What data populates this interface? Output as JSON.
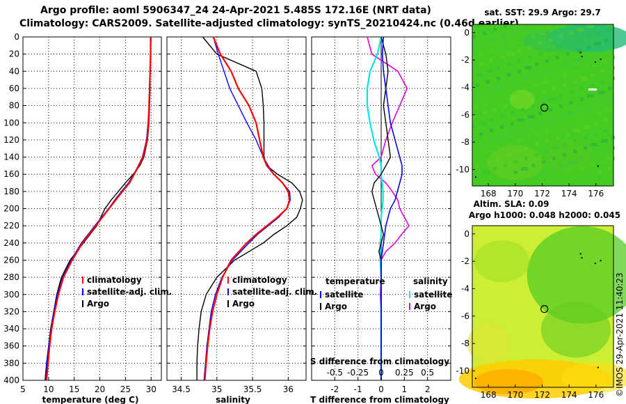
{
  "header": {
    "line1": "Argo profile: aoml 5906347_24 24-Apr-2021 5.485S 172.16E (NRT data)",
    "line2": "Climatology: CARS2009. Satellite-adjusted climatology: synTS_20210424.nc (0.46d earlier)"
  },
  "colors": {
    "climatology": "#ff0000",
    "satellite": "#0000ff",
    "argo": "#000000",
    "s_satellite": "#00e5e5",
    "s_argo": "#e000e0"
  },
  "depth_axis": {
    "ticks": [
      0,
      20,
      40,
      60,
      80,
      100,
      120,
      140,
      160,
      180,
      200,
      220,
      240,
      260,
      280,
      300,
      320,
      340,
      360,
      380,
      400
    ]
  },
  "chart_data": [
    {
      "type": "line",
      "xlabel": "temperature (deg C)",
      "xlim": [
        5,
        32
      ],
      "ylim": [
        400,
        0
      ],
      "xticks": [
        5,
        10,
        15,
        20,
        25,
        30
      ],
      "depth": [
        0,
        20,
        40,
        60,
        80,
        100,
        120,
        140,
        150,
        160,
        170,
        180,
        190,
        200,
        220,
        240,
        260,
        280,
        300,
        320,
        340,
        360,
        380,
        400
      ],
      "series": [
        {
          "name": "climatology",
          "values": [
            29.9,
            29.9,
            29.8,
            29.7,
            29.6,
            29.5,
            29.2,
            28.4,
            27.6,
            26.7,
            25.8,
            24.4,
            23.1,
            21.8,
            19.2,
            16.6,
            14.6,
            12.9,
            11.9,
            11.2,
            10.6,
            10.2,
            9.9,
            9.6
          ]
        },
        {
          "name": "satellite-adj. clim.",
          "values": [
            30.0,
            29.9,
            29.8,
            29.7,
            29.6,
            29.4,
            29.1,
            28.3,
            27.5,
            26.6,
            25.6,
            24.2,
            22.9,
            21.7,
            19.0,
            16.4,
            14.4,
            12.7,
            11.7,
            11.0,
            10.5,
            10.0,
            9.6,
            9.3
          ]
        },
        {
          "name": "Argo",
          "values": [
            29.9,
            29.9,
            29.8,
            29.8,
            29.7,
            29.6,
            29.3,
            28.6,
            27.8,
            26.5,
            25.0,
            23.6,
            22.2,
            21.0,
            19.4,
            16.8,
            14.2,
            12.5,
            11.6,
            11.0,
            10.4,
            10.0,
            9.7,
            9.4
          ]
        }
      ],
      "legend": [
        "climatology",
        "satellite-adj. clim.",
        "Argo"
      ]
    },
    {
      "type": "line",
      "xlabel": "salinity",
      "xlim": [
        34.3,
        36.25
      ],
      "ylim": [
        400,
        0
      ],
      "xticks": [
        34.5,
        35,
        35.5,
        36
      ],
      "xtick_labels": [
        "34.5",
        "35",
        "35.5",
        "36"
      ],
      "depth": [
        0,
        20,
        40,
        60,
        80,
        100,
        120,
        140,
        150,
        160,
        170,
        180,
        190,
        200,
        210,
        220,
        230,
        240,
        260,
        280,
        300,
        320,
        340,
        360,
        380,
        400
      ],
      "series": [
        {
          "name": "climatology",
          "values": [
            34.95,
            35.05,
            35.2,
            35.3,
            35.45,
            35.55,
            35.6,
            35.65,
            35.7,
            35.8,
            35.92,
            36.0,
            36.02,
            35.98,
            35.85,
            35.7,
            35.55,
            35.42,
            35.2,
            35.08,
            35.0,
            34.94,
            34.9,
            34.87,
            34.85,
            34.83
          ]
        },
        {
          "name": "satellite-adj. clim.",
          "values": [
            34.95,
            35.02,
            35.1,
            35.18,
            35.3,
            35.42,
            35.55,
            35.65,
            35.72,
            35.8,
            35.92,
            36.02,
            36.03,
            35.98,
            35.87,
            35.72,
            35.57,
            35.45,
            35.22,
            35.07,
            34.98,
            34.92,
            34.89,
            34.86,
            34.84,
            34.82
          ]
        },
        {
          "name": "Argo",
          "values": [
            34.8,
            35.0,
            35.55,
            35.63,
            35.65,
            35.66,
            35.66,
            35.66,
            35.7,
            35.85,
            36.05,
            36.16,
            36.2,
            36.17,
            36.12,
            35.98,
            35.8,
            35.65,
            35.25,
            35.0,
            34.85,
            34.78,
            34.75,
            34.73,
            34.72,
            34.72
          ]
        }
      ],
      "legend": [
        "climatology",
        "satellite-adj. clim.",
        "Argo"
      ]
    },
    {
      "type": "line",
      "xlabel": "T difference from climatology",
      "xlim": [
        -3,
        3
      ],
      "ylim": [
        400,
        0
      ],
      "xticks": [
        -2,
        -1,
        0,
        1,
        2
      ],
      "top_axis_label": "S difference from climatology",
      "top_ticks": [
        -0.5,
        -0.25,
        0,
        0.25,
        0.5
      ],
      "top_tick_labels": [
        "-0.5",
        "-0.25",
        "0",
        "0.25",
        "0.5"
      ],
      "depth": [
        0,
        20,
        40,
        60,
        80,
        100,
        120,
        140,
        150,
        160,
        170,
        180,
        190,
        200,
        210,
        220,
        230,
        240,
        250,
        260,
        280,
        300,
        320,
        340,
        360,
        380,
        400
      ],
      "series": [
        {
          "name": "T satellite",
          "values": [
            0.1,
            0.05,
            0.1,
            0.2,
            0.3,
            0.4,
            0.6,
            0.8,
            0.9,
            0.9,
            0.8,
            0.7,
            0.6,
            0.4,
            0.3,
            0.2,
            0.15,
            0.1,
            0.05,
            0.0,
            0.0,
            0.0,
            0.0,
            0.0,
            0.0,
            0.0,
            0.0
          ]
        },
        {
          "name": "T Argo",
          "values": [
            0.0,
            0.2,
            0.3,
            0.2,
            0.1,
            0.2,
            0.3,
            0.4,
            0.2,
            0.0,
            -0.3,
            -0.4,
            -0.3,
            -0.2,
            -0.1,
            0.0,
            0.1,
            0.0,
            -0.1,
            0.0,
            0.0,
            0.0,
            0.0,
            0.0,
            0.0,
            0.0,
            0.0
          ]
        },
        {
          "name": "S satellite",
          "values": [
            0.0,
            -0.04,
            -0.12,
            -0.15,
            -0.15,
            -0.12,
            -0.08,
            -0.02,
            0.0,
            0.0,
            0.01,
            0.02,
            0.02,
            0.01,
            0.0,
            0.0,
            0.0,
            -0.01,
            -0.01,
            -0.01,
            0.0,
            0.0,
            0.0,
            0.0,
            0.0,
            0.0,
            0.0
          ]
        },
        {
          "name": "S Argo",
          "values": [
            -0.15,
            -0.1,
            0.18,
            0.28,
            0.2,
            0.12,
            0.05,
            0.0,
            -0.1,
            -0.06,
            0.05,
            0.12,
            0.18,
            0.2,
            0.25,
            0.3,
            0.22,
            0.15,
            0.05,
            0.0,
            0.0,
            -0.01,
            0.0,
            0.0,
            0.0,
            0.0,
            0.0
          ]
        }
      ],
      "legend_left": {
        "title": "temperature",
        "items": [
          "satellite",
          "Argo"
        ]
      },
      "legend_right": {
        "title": "salinity",
        "items": [
          "satellite",
          "Argo"
        ]
      }
    }
  ],
  "maps": [
    {
      "title": "sat. SST: 29.9 Argo: 29.7",
      "xticks": [
        168,
        170,
        172,
        174,
        176
      ],
      "yticks": [
        0,
        -2,
        -4,
        -6,
        -8,
        -10
      ],
      "marker": {
        "lon": 172.16,
        "lat": -5.485
      }
    },
    {
      "title_line1": "Altim. SLA: 0.09",
      "title_line2": "Argo h1000: 0.048 h2000: 0.045",
      "xticks": [
        168,
        170,
        172,
        174,
        176
      ],
      "yticks": [
        0,
        -2,
        -4,
        -6,
        -8,
        -10
      ],
      "marker": {
        "lon": 172.16,
        "lat": -5.485
      }
    }
  ],
  "footer": {
    "credit": "©IMOS 29-Apr-2021 11:40:23"
  }
}
